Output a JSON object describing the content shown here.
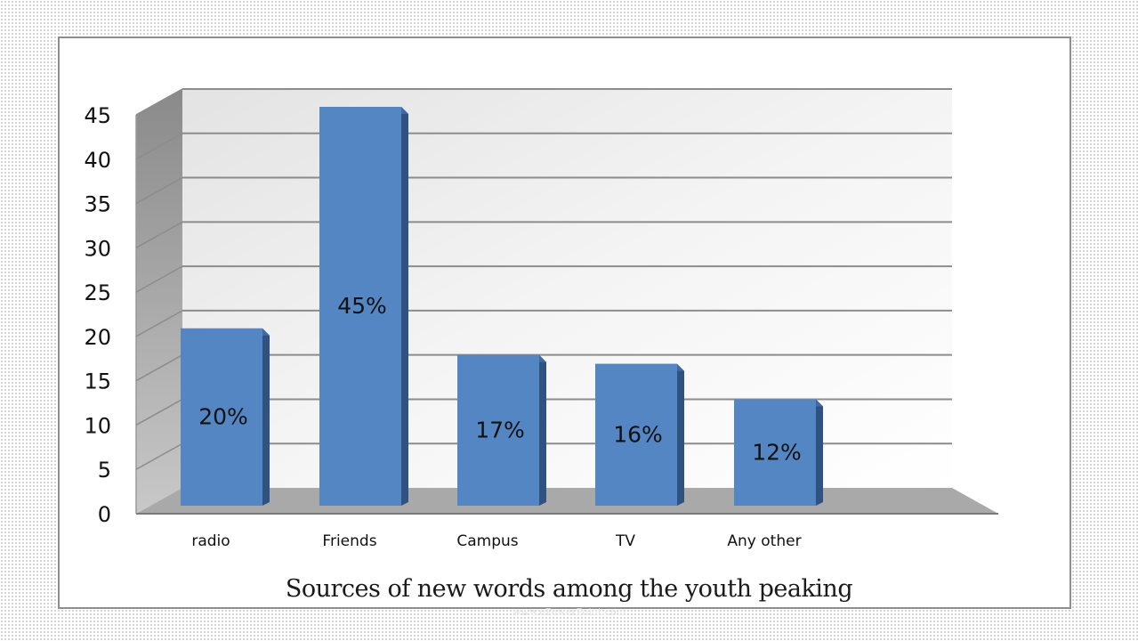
{
  "chart_data": {
    "type": "bar",
    "title": "Sources  of new  words among the youth peaking",
    "categories": [
      "radio",
      "Friends",
      "Campus",
      "TV",
      "Any other"
    ],
    "values": [
      20,
      45,
      17,
      16,
      12
    ],
    "data_labels": [
      "20%",
      "45%",
      "17%",
      "16%",
      "12%"
    ],
    "yticks": [
      0,
      5,
      10,
      15,
      20,
      25,
      30,
      35,
      40,
      45
    ],
    "ylim": [
      0,
      45
    ],
    "grid": true,
    "style": "3d-column",
    "colors": {
      "bar_front": "#5586c4",
      "bar_side": "#2f5280",
      "bar_top": "#3f6aa3",
      "back_wall": "#f4f4f4",
      "side_wall": "#8a8a8a",
      "floor": "#a9a9a9",
      "gridline": "#8c8c8c"
    }
  },
  "watermark": "www.ePowerPoint.com"
}
